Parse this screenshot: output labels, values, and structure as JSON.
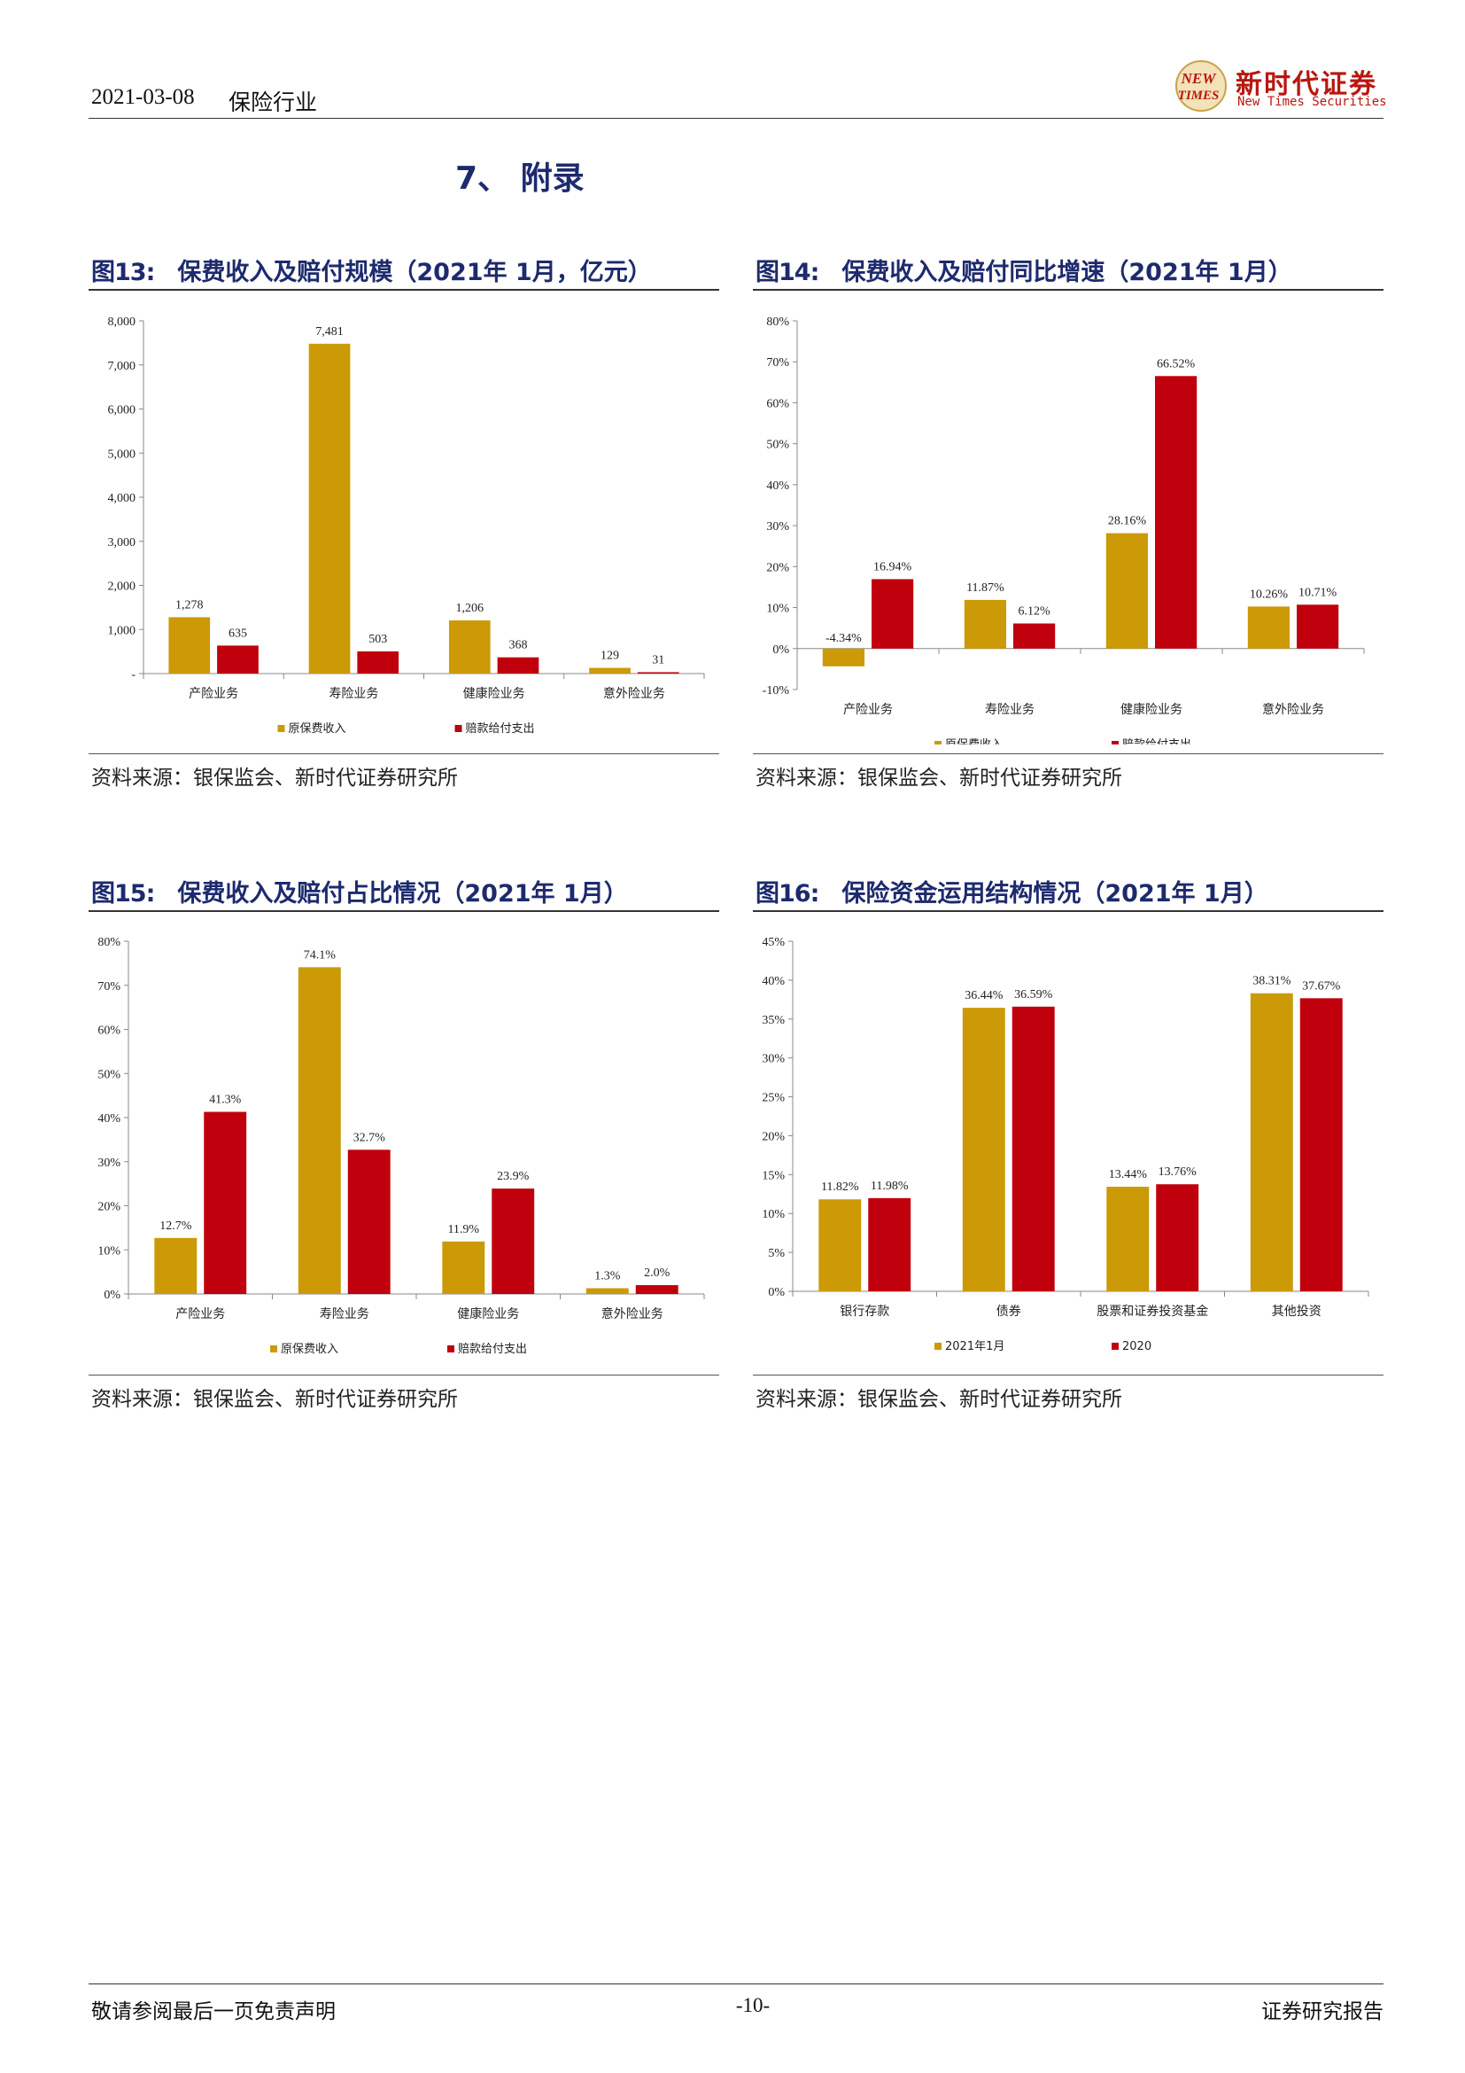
{
  "header": {
    "date": "2021-03-08",
    "section": "保险行业",
    "brand_cn": "新时代证券",
    "brand_en": "New Times Securities",
    "logo_text_1": "NEW",
    "logo_text_2": "TIMES"
  },
  "section_title": "7、 附录",
  "colors": {
    "gold": "#cc9a06",
    "red": "#c0000c",
    "title": "#1d2a6e"
  },
  "figures": [
    {
      "num": "图13:",
      "title": "保费收入及赔付规模（2021年 1月，亿元）",
      "source": "资料来源：银保监会、新时代证券研究所"
    },
    {
      "num": "图14:",
      "title": "保费收入及赔付同比增速（2021年 1月）",
      "source": "资料来源：银保监会、新时代证券研究所"
    },
    {
      "num": "图15:",
      "title": "保费收入及赔付占比情况（2021年 1月）",
      "source": "资料来源：银保监会、新时代证券研究所"
    },
    {
      "num": "图16:",
      "title": "保险资金运用结构情况（2021年 1月）",
      "source": "资料来源：银保监会、新时代证券研究所"
    }
  ],
  "chart_data": [
    {
      "type": "bar",
      "categories": [
        "产险业务",
        "寿险业务",
        "健康险业务",
        "意外险业务"
      ],
      "series": [
        {
          "name": "原保费收入",
          "values": [
            1278,
            7481,
            1206,
            129
          ]
        },
        {
          "name": "赔款给付支出",
          "values": [
            635,
            503,
            368,
            31
          ]
        }
      ],
      "data_labels": [
        [
          "1,278",
          "7,481",
          "1,206",
          "129"
        ],
        [
          "635",
          "503",
          "368",
          "31"
        ]
      ],
      "ylim": [
        0,
        8000
      ],
      "yticks": [
        "-",
        "1,000",
        "2,000",
        "3,000",
        "4,000",
        "5,000",
        "6,000",
        "7,000",
        "8,000"
      ],
      "legend": "bottom"
    },
    {
      "type": "bar",
      "categories": [
        "产险业务",
        "寿险业务",
        "健康险业务",
        "意外险业务"
      ],
      "series": [
        {
          "name": "原保费收入",
          "values": [
            -4.34,
            11.87,
            28.16,
            10.26
          ]
        },
        {
          "name": "赔款给付支出",
          "values": [
            16.94,
            6.12,
            66.52,
            10.71
          ]
        }
      ],
      "data_labels": [
        [
          "-4.34%",
          "11.87%",
          "28.16%",
          "10.26%"
        ],
        [
          "16.94%",
          "6.12%",
          "66.52%",
          "10.71%"
        ]
      ],
      "ylim": [
        -10,
        80
      ],
      "yticks": [
        "-10%",
        "0%",
        "10%",
        "20%",
        "30%",
        "40%",
        "50%",
        "60%",
        "70%",
        "80%"
      ],
      "legend": "bottom"
    },
    {
      "type": "bar",
      "categories": [
        "产险业务",
        "寿险业务",
        "健康险业务",
        "意外险业务"
      ],
      "series": [
        {
          "name": "原保费收入",
          "values": [
            12.7,
            74.1,
            11.9,
            1.3
          ]
        },
        {
          "name": "赔款给付支出",
          "values": [
            41.3,
            32.7,
            23.9,
            2.0
          ]
        }
      ],
      "data_labels": [
        [
          "12.7%",
          "74.1%",
          "11.9%",
          "1.3%"
        ],
        [
          "41.3%",
          "32.7%",
          "23.9%",
          "2.0%"
        ]
      ],
      "ylim": [
        0,
        80
      ],
      "yticks": [
        "0%",
        "10%",
        "20%",
        "30%",
        "40%",
        "50%",
        "60%",
        "70%",
        "80%"
      ],
      "legend": "bottom"
    },
    {
      "type": "bar",
      "categories": [
        "银行存款",
        "债券",
        "股票和证券投资基金",
        "其他投资"
      ],
      "series": [
        {
          "name": "2021年1月",
          "values": [
            11.82,
            36.44,
            13.44,
            38.31
          ]
        },
        {
          "name": "2020",
          "values": [
            11.98,
            36.59,
            13.76,
            37.67
          ]
        }
      ],
      "data_labels": [
        [
          "11.82%",
          "36.44%",
          "13.44%",
          "38.31%"
        ],
        [
          "11.98%",
          "36.59%",
          "13.76%",
          "37.67%"
        ]
      ],
      "ylim": [
        0,
        45
      ],
      "yticks": [
        "0%",
        "5%",
        "10%",
        "15%",
        "20%",
        "25%",
        "30%",
        "35%",
        "40%",
        "45%"
      ],
      "legend": "bottom"
    }
  ],
  "footer": {
    "left": "敬请参阅最后一页免责声明",
    "page": "-10-",
    "right": "证券研究报告"
  }
}
